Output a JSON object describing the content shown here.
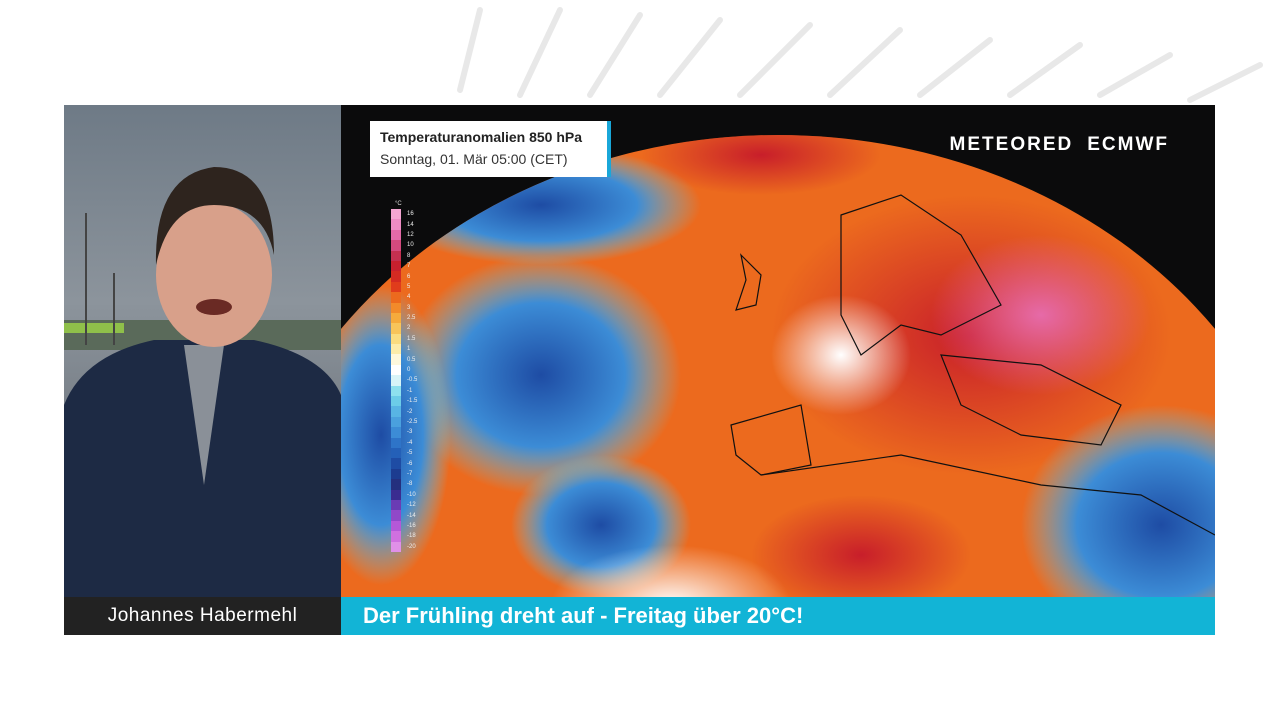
{
  "map": {
    "title": "Temperaturanomalien 850 hPa",
    "subtitle": "Sonntag, 01. Mär 05:00 (CET)",
    "logos": [
      "METEORED",
      "ECMWF"
    ],
    "legend": {
      "unit": "°C",
      "labels": [
        "16",
        "14",
        "12",
        "10",
        "8",
        "7",
        "6",
        "5",
        "4",
        "3",
        "2.5",
        "2",
        "1.5",
        "1",
        "0.5",
        "0",
        "-0.5",
        "-1",
        "-1.5",
        "-2",
        "-2.5",
        "-3",
        "-4",
        "-5",
        "-6",
        "-7",
        "-8",
        "-10",
        "-12",
        "-14",
        "-16",
        "-18",
        "-20"
      ],
      "colors": [
        "#f4a6d2",
        "#ee8cc4",
        "#e46aa8",
        "#d44a7e",
        "#c43050",
        "#c8202e",
        "#d42a22",
        "#e03c1c",
        "#ec6a1e",
        "#f28a2a",
        "#f6aa3c",
        "#f8c45a",
        "#fadc80",
        "#fcecaa",
        "#fef8dc",
        "#ffffff",
        "#d8f4f8",
        "#8ee0ee",
        "#6ccce8",
        "#58b4e4",
        "#4aa0de",
        "#3c8cd6",
        "#2e74c8",
        "#2460b8",
        "#1e4ca4",
        "#1c3c90",
        "#24307e",
        "#3a2c90",
        "#6a3cb4",
        "#9048c8",
        "#b458d8",
        "#d070e0",
        "#e090e8"
      ]
    }
  },
  "presenter": {
    "name": "Johannes Habermehl"
  },
  "headline": "Der Frühling dreht auf - Freitag über 20°C!"
}
